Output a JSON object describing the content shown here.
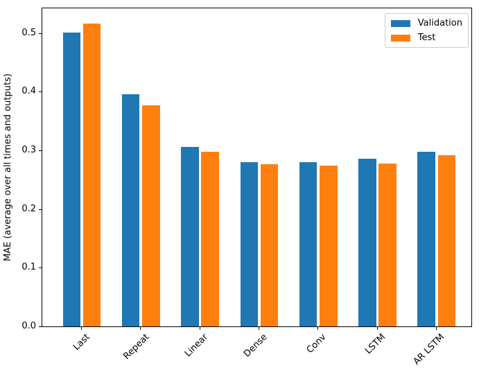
{
  "chart_data": {
    "type": "bar",
    "title": "",
    "xlabel": "",
    "ylabel": "MAE (average over all times and outputs)",
    "categories": [
      "Last",
      "Repeat",
      "Linear",
      "Dense",
      "Conv",
      "LSTM",
      "AR LSTM"
    ],
    "series": [
      {
        "name": "Validation",
        "color": "#1f77b4",
        "values": [
          0.501,
          0.396,
          0.306,
          0.28,
          0.28,
          0.286,
          0.298
        ]
      },
      {
        "name": "Test",
        "color": "#ff7f0e",
        "values": [
          0.516,
          0.377,
          0.298,
          0.276,
          0.274,
          0.277,
          0.292
        ]
      }
    ],
    "yticks": [
      0.0,
      0.1,
      0.2,
      0.3,
      0.4,
      0.5
    ],
    "ytick_labels": [
      "0.0",
      "0.1",
      "0.2",
      "0.3",
      "0.4",
      "0.5"
    ],
    "ylim": [
      0,
      0.542
    ],
    "xtick_rotation_deg": 45,
    "grid": false,
    "legend_position": "upper right",
    "legend": {
      "items": [
        "Validation",
        "Test"
      ]
    }
  }
}
